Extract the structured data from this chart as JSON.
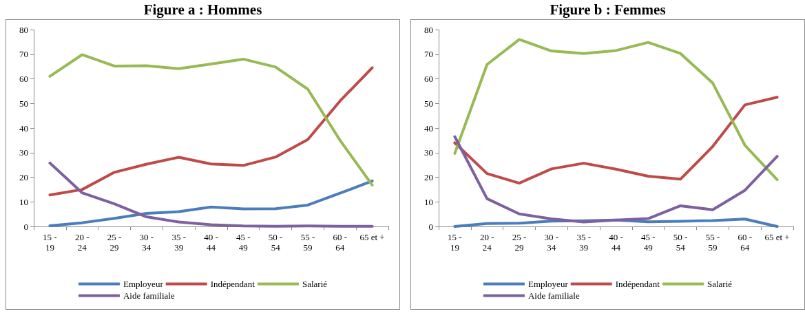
{
  "chart_data": [
    {
      "type": "line",
      "title": "Figure a : Hommes",
      "categories": [
        "15 - 19",
        "20 - 24",
        "25 - 29",
        "30 - 34",
        "35 - 39",
        "40 - 44",
        "45 - 49",
        "50 - 54",
        "55 - 59",
        "60 - 64",
        "65 et +"
      ],
      "ylim": [
        0,
        80
      ],
      "yticks": [
        0,
        10,
        20,
        30,
        40,
        50,
        60,
        70,
        80
      ],
      "grid": false,
      "legend": "bottom",
      "marker": "none",
      "series": [
        {
          "name": "Employeur",
          "color": "#4a7ebb",
          "values": [
            0.3,
            1.5,
            3.3,
            5.3,
            6,
            7.9,
            7.1,
            7.2,
            8.7,
            13.5,
            18.5
          ]
        },
        {
          "name": "Indépendant",
          "color": "#be4b48",
          "values": [
            12.8,
            15,
            22,
            25.3,
            28.1,
            25.4,
            24.8,
            28.2,
            35.3,
            51,
            64.5
          ]
        },
        {
          "name": "Salarié",
          "color": "#98b954",
          "values": [
            61,
            69.8,
            65.2,
            65.3,
            64.1,
            66,
            68,
            64.8,
            55.8,
            35,
            16.8
          ]
        },
        {
          "name": "Aide familiale",
          "color": "#7d60a0",
          "values": [
            25.8,
            13.7,
            9.2,
            3.9,
            1.8,
            0.7,
            0.2,
            0.1,
            0.2,
            0.1,
            0.1
          ]
        }
      ]
    },
    {
      "type": "line",
      "title": "Figure b : Femmes",
      "categories": [
        "15 - 19",
        "20 - 24",
        "25 - 29",
        "30 - 34",
        "35 - 39",
        "40 - 44",
        "45 - 49",
        "50 - 54",
        "55 - 59",
        "60 - 64",
        "65 et +"
      ],
      "ylim": [
        0,
        80
      ],
      "yticks": [
        0,
        10,
        20,
        30,
        40,
        50,
        60,
        70,
        80
      ],
      "grid": false,
      "legend": "bottom",
      "marker": "none",
      "series": [
        {
          "name": "Employeur",
          "color": "#4a7ebb",
          "values": [
            0,
            1.2,
            1.3,
            2.2,
            2.3,
            2.6,
            1.9,
            2.1,
            2.4,
            3,
            0
          ]
        },
        {
          "name": "Indépendant",
          "color": "#be4b48",
          "values": [
            34,
            21.5,
            17.6,
            23.4,
            25.7,
            23.3,
            20.4,
            19.2,
            32.5,
            49.4,
            52.5
          ]
        },
        {
          "name": "Salarié",
          "color": "#98b954",
          "values": [
            29.7,
            65.8,
            76,
            71.3,
            70.3,
            71.5,
            74.8,
            70.3,
            58.3,
            33,
            19
          ]
        },
        {
          "name": "Aide familiale",
          "color": "#7d60a0",
          "values": [
            36.5,
            11.3,
            5.1,
            3.1,
            1.8,
            2.6,
            3.2,
            8.4,
            6.8,
            14.7,
            28.5
          ]
        }
      ]
    }
  ]
}
